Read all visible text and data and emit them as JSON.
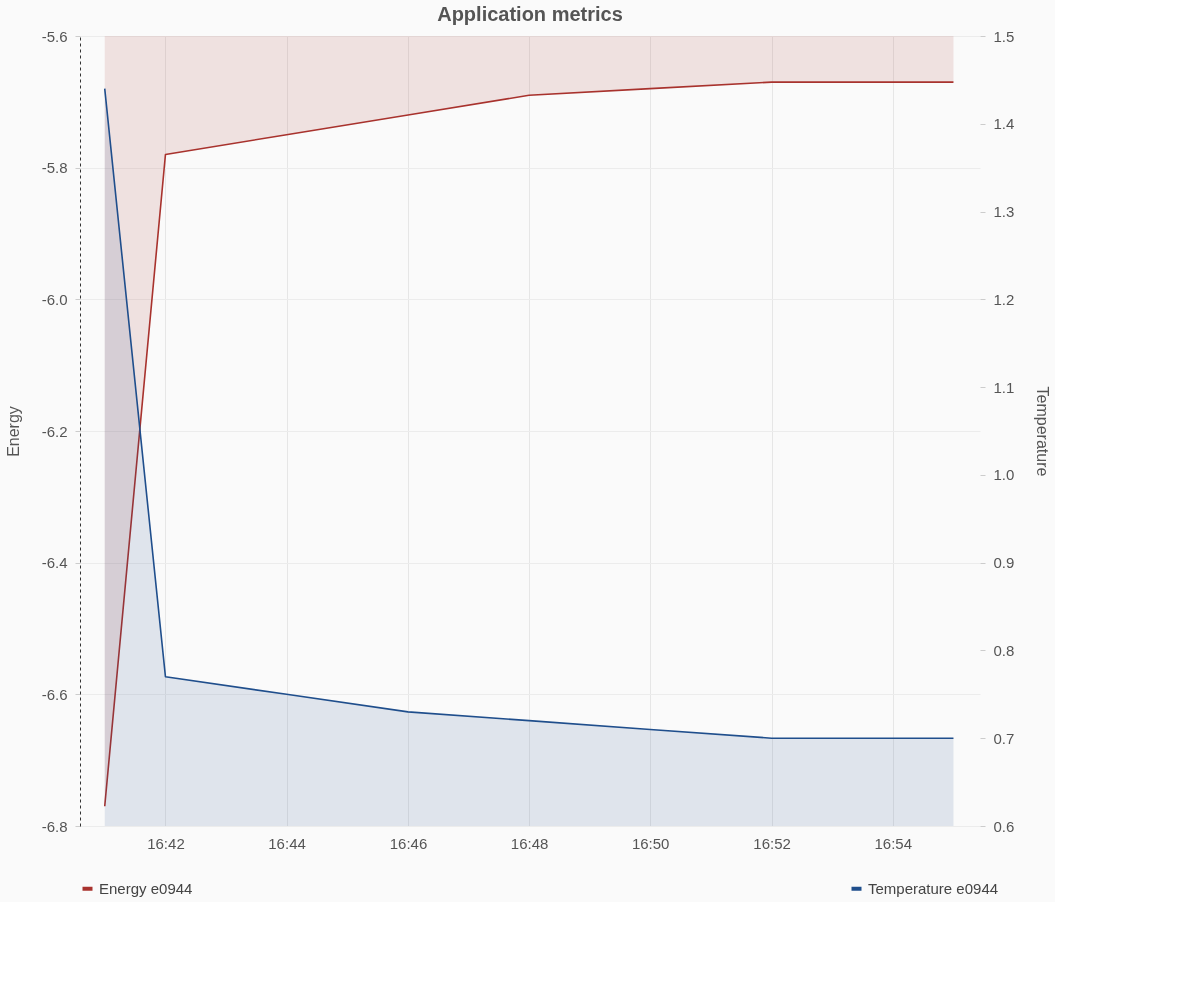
{
  "chart_data": {
    "type": "area",
    "title": "Application metrics",
    "ylabel": "Energy",
    "y2label": "Temperature",
    "x": [
      16.6833,
      16.7,
      16.7333,
      16.7667,
      16.8,
      16.8333,
      16.8667,
      16.9167
    ],
    "xlim": [
      16.6765,
      16.924
    ],
    "xticks": [
      {
        "value": 16.7,
        "label": "16:42"
      },
      {
        "value": 16.7333,
        "label": "16:44"
      },
      {
        "value": 16.7667,
        "label": "16:46"
      },
      {
        "value": 16.8,
        "label": "16:48"
      },
      {
        "value": 16.8333,
        "label": "16:50"
      },
      {
        "value": 16.8667,
        "label": "16:52"
      },
      {
        "value": 16.9,
        "label": "16:54"
      }
    ],
    "ylim": [
      -6.8,
      -5.6
    ],
    "yticks": [
      -6.8,
      -6.6,
      -6.4,
      -6.2,
      {
        "value": -6,
        "label": "-6.0"
      },
      -5.8,
      -5.6
    ],
    "y2lim": [
      0.6,
      1.5
    ],
    "y2ticks": [
      0.6,
      0.7,
      0.8,
      0.9,
      {
        "value": 1,
        "label": "1.0"
      },
      1.1,
      1.2,
      1.3,
      1.4,
      1.5
    ],
    "series": [
      {
        "name": "Energy e0944",
        "color": "#a8322d",
        "axis": "y",
        "values": [
          -6.77,
          -5.78,
          -5.75,
          -5.72,
          -5.69,
          -5.68,
          -5.67,
          -5.67
        ]
      },
      {
        "name": "Temperature e0944",
        "color": "#1f4e8c",
        "axis": "y2",
        "values": [
          1.44,
          0.77,
          0.75,
          0.73,
          0.72,
          0.71,
          0.7,
          0.7
        ]
      }
    ],
    "grid": true,
    "legend": "bottom"
  }
}
